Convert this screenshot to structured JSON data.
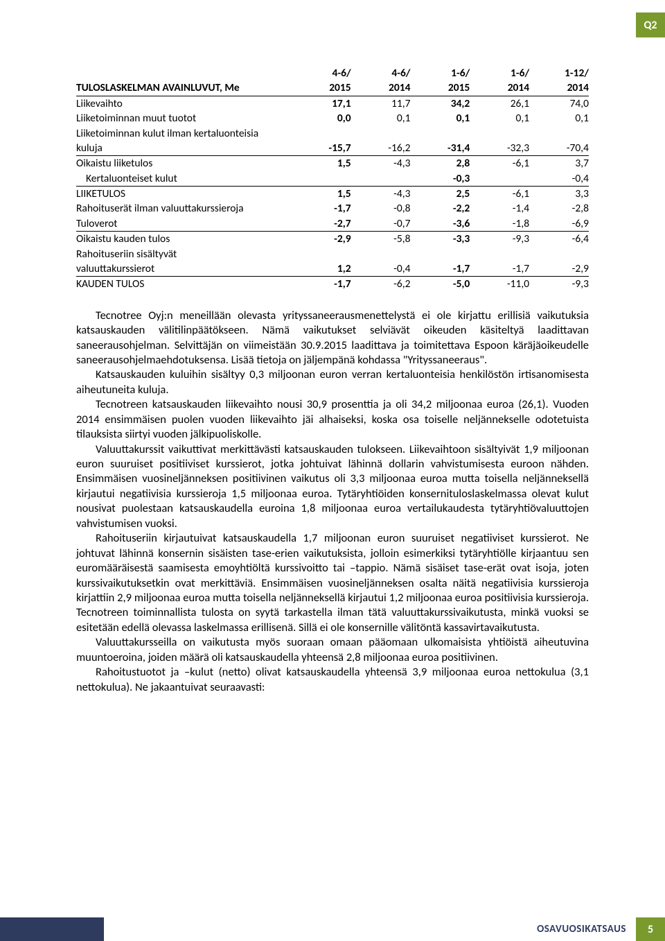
{
  "badge_top": "Q2",
  "table": {
    "header1": {
      "label": "",
      "c1": "4-6/",
      "c2": "4-6/",
      "c3": "1-6/",
      "c4": "1-6/",
      "c5": "1-12/"
    },
    "header2": {
      "label": "TULOSLASKELMAN AVAINLUVUT, Me",
      "c1": "2015",
      "c2": "2014",
      "c3": "2015",
      "c4": "2014",
      "c5": "2014"
    },
    "rows": [
      {
        "label": "Liikevaihto",
        "c1": "17,1",
        "c2": "11,7",
        "c3": "34,2",
        "c4": "26,1",
        "c5": "74,0",
        "underline": false
      },
      {
        "label": "Liiketoiminnan muut tuotot",
        "c1": "0,0",
        "c2": "0,1",
        "c3": "0,1",
        "c4": "0,1",
        "c5": "0,1",
        "underline": false
      },
      {
        "label": "Liiketoiminnan kulut ilman kertaluonteisia",
        "c1": "",
        "c2": "",
        "c3": "",
        "c4": "",
        "c5": "",
        "underline": false
      },
      {
        "label": "kuluja",
        "c1": "-15,7",
        "c2": "-16,2",
        "c3": "-31,4",
        "c4": "-32,3",
        "c5": "-70,4",
        "underline": true
      },
      {
        "label": "Oikaistu liiketulos",
        "c1": "1,5",
        "c2": "-4,3",
        "c3": "2,8",
        "c4": "-6,1",
        "c5": "3,7",
        "underline": false
      },
      {
        "label": "Kertaluonteiset kulut",
        "indent": true,
        "c1": "",
        "c2": "",
        "c3": "-0,3",
        "c4": "",
        "c5": "-0,4",
        "underline": true
      },
      {
        "label": "LIIKETULOS",
        "c1": "1,5",
        "c2": "-4,3",
        "c3": "2,5",
        "c4": "-6,1",
        "c5": "3,3",
        "underline": false
      },
      {
        "label": "Rahoituserät ilman valuuttakurssieroja",
        "c1": "-1,7",
        "c2": "-0,8",
        "c3": "-2,2",
        "c4": "-1,4",
        "c5": "-2,8",
        "underline": false
      },
      {
        "label": "Tuloverot",
        "c1": "-2,7",
        "c2": "-0,7",
        "c3": "-3,6",
        "c4": "-1,8",
        "c5": "-6,9",
        "underline": true
      },
      {
        "label": "Oikaistu kauden tulos",
        "c1": "-2,9",
        "c2": "-5,8",
        "c3": "-3,3",
        "c4": "-9,3",
        "c5": "-6,4",
        "underline": false
      },
      {
        "label": "Rahoituseriin sisältyvät",
        "c1": "",
        "c2": "",
        "c3": "",
        "c4": "",
        "c5": "",
        "underline": false
      },
      {
        "label": "valuuttakurssierot",
        "c1": "1,2",
        "c2": "-0,4",
        "c3": "-1,7",
        "c4": "-1,7",
        "c5": "-2,9",
        "underline": true
      },
      {
        "label": "KAUDEN TULOS",
        "c1": "-1,7",
        "c2": "-6,2",
        "c3": "-5,0",
        "c4": "-11,0",
        "c5": "-9,3",
        "underline": false
      }
    ]
  },
  "paragraphs": [
    "Tecnotree Oyj:n meneillään olevasta yrityssaneerausmenettelystä ei ole kirjattu erillisiä vaikutuksia katsauskauden välitilinpäätökseen. Nämä vaikutukset selviävät oikeuden käsiteltyä laadittavan saneerausohjelman. Selvittäjän on viimeistään 30.9.2015 laadittava ja toimitettava Espoon käräjäoikeudelle saneerausohjelmaehdotuksensa. Lisää tietoja on jäljempänä kohdassa \"Yrityssaneeraus\".",
    "Katsauskauden kuluihin sisältyy 0,3 miljoonan euron verran kertaluonteisia henkilöstön irtisanomisesta aiheutuneita kuluja.",
    "Tecnotreen katsauskauden liikevaihto nousi 30,9 prosenttia ja oli 34,2 miljoonaa euroa (26,1). Vuoden 2014 ensimmäisen puolen vuoden liikevaihto jäi alhaiseksi, koska osa toiselle neljännekselle odotetuista tilauksista siirtyi vuoden jälkipuoliskolle.",
    "Valuuttakurssit vaikuttivat merkittävästi katsauskauden tulokseen. Liikevaihtoon sisältyivät 1,9 miljoonan euron suuruiset positiiviset kurssierot, jotka johtuivat lähinnä dollarin vahvistumisesta euroon nähden. Ensimmäisen vuosineljänneksen positiivinen vaikutus oli 3,3 miljoonaa euroa mutta toisella neljänneksellä kirjautui negatiivisia kurssieroja 1,5 miljoonaa euroa. Tytäryhtiöiden konsernituloslaskelmassa olevat kulut nousivat puolestaan katsauskaudella euroina 1,8 miljoonaa euroa vertailukaudesta tytäryhtiövaluuttojen vahvistumisen vuoksi.",
    "Rahoituseriin kirjautuivat katsauskaudella 1,7 miljoonan euron suuruiset negatiiviset kurssierot. Ne johtuvat lähinnä konsernin sisäisten tase-erien vaikutuksista, jolloin esimerkiksi tytäryhtiölle kirjaantuu sen euromääräisestä saamisesta emoyhtiöltä kurssivoitto tai –tappio. Nämä sisäiset tase-erät ovat isoja, joten kurssivaikutuksetkin ovat merkittäviä. Ensimmäisen vuosineljänneksen osalta näitä negatiivisia kurssieroja kirjattiin 2,9 miljoonaa euroa mutta toisella neljänneksellä kirjautui 1,2 miljoonaa euroa positiivisia kurssieroja. Tecnotreen toiminnallista tulosta on syytä tarkastella ilman tätä valuuttakurssivaikutusta, minkä vuoksi se esitetään edellä olevassa laskelmassa erillisenä. Sillä ei ole konsernille välitöntä kassavirtavaikutusta.",
    "Valuuttakursseilla on vaikutusta myös suoraan omaan pääomaan ulkomaisista yhtiöistä aiheutuvina muuntoeroina, joiden määrä oli katsauskaudella yhteensä 2,8 miljoonaa euroa positiivinen.",
    "Rahoitustuotot ja –kulut (netto) olivat katsauskaudella yhteensä 3,9 miljoonaa euroa nettokulua (3,1 nettokulua). Ne jakaantuivat seuraavasti:"
  ],
  "footer": {
    "label": "OSAVUOSIKATSAUS",
    "page": "5"
  }
}
